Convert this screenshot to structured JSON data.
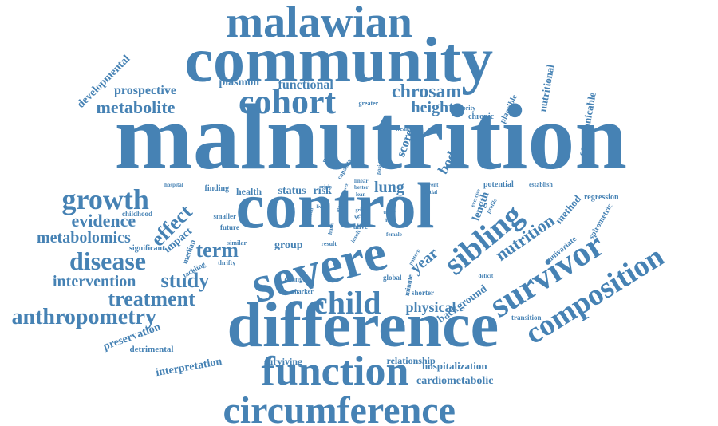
{
  "color": "#4682b4",
  "words": [
    "malnutrition",
    "control",
    "difference",
    "community",
    "severe",
    "malawian",
    "function",
    "circumference",
    "survivor",
    "composition",
    "sibling",
    "cohort",
    "child",
    "growth",
    "disease",
    "anthropometry",
    "study",
    "treatment",
    "intervention",
    "effect",
    "term",
    "nutrition",
    "evidence",
    "metabolomics",
    "metabolite",
    "chrosam",
    "height",
    "lung",
    "year",
    "physical",
    "prospective",
    "score",
    "body",
    "functional",
    "plasmon",
    "developmental",
    "nutritional",
    "communicable",
    "background",
    "relationship",
    "hospitalization",
    "cardiometabolic",
    "preservation",
    "interpretation",
    "detrimental",
    "surviving",
    "group",
    "status",
    "risk",
    "health",
    "finding",
    "childhood",
    "impact",
    "median",
    "significant",
    "tackling",
    "method",
    "length",
    "regression",
    "spirometric",
    "univariate",
    "transition",
    "chronic",
    "plausible",
    "priority",
    "greater",
    "weaker",
    "puberty",
    "capacity",
    "positive",
    "current",
    "partial",
    "lean",
    "better",
    "linear",
    "origin",
    "lower",
    "blood",
    "live",
    "mas",
    "grip",
    "fewer",
    "upper",
    "head",
    "alive",
    "hand",
    "insult",
    "result",
    "female",
    "pattern",
    "deficit",
    "global",
    "minute",
    "shorter",
    "change",
    "marker",
    "thrifty",
    "similar",
    "future",
    "smaller",
    "hospital",
    "exercise",
    "profile",
    "potential",
    "establish"
  ]
}
